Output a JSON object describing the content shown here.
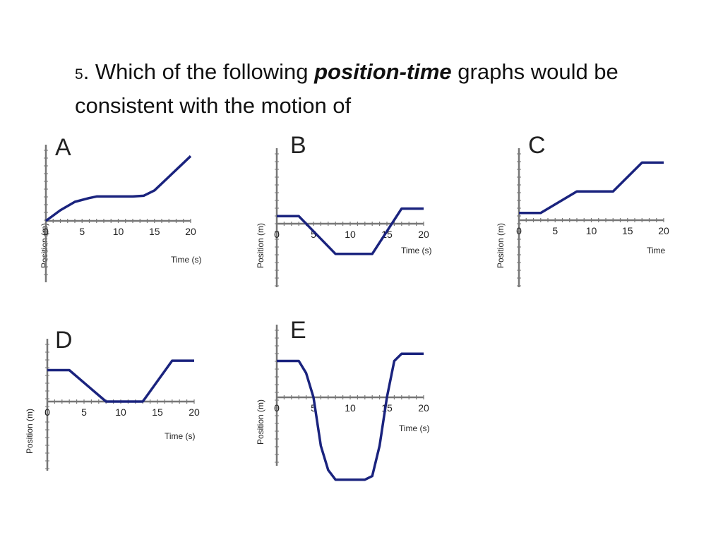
{
  "question": {
    "number": "5",
    "text_before": ". Which of the following ",
    "emphasis": "position-time",
    "text_after": " graphs would be consistent with the motion of"
  },
  "line_color": "#1a237e",
  "axis_color": "#777777",
  "chart_data": [
    {
      "type": "line",
      "title": "A",
      "xlabel": "Time (s)",
      "ylabel": "Position (m)",
      "x_ticks": [
        "0",
        "5",
        "10",
        "15",
        "20"
      ],
      "xlim": [
        0,
        20
      ],
      "ylim": [
        -5,
        10
      ],
      "grid": false,
      "series": [
        {
          "x": [
            0,
            2,
            4,
            6,
            7,
            8,
            10,
            12,
            13.5,
            15,
            17,
            20
          ],
          "y": [
            0,
            1.4,
            2.5,
            3.0,
            3.2,
            3.2,
            3.2,
            3.2,
            3.3,
            4.0,
            5.8,
            8.5
          ]
        }
      ]
    },
    {
      "type": "line",
      "title": "B",
      "xlabel": "Time (s)",
      "ylabel": "Position (m)",
      "x_ticks": [
        "0",
        "5",
        "10",
        "15",
        "20"
      ],
      "xlim": [
        0,
        20
      ],
      "ylim": [
        -10,
        10
      ],
      "grid": false,
      "series": [
        {
          "x": [
            0,
            3,
            8,
            13,
            17,
            20
          ],
          "y": [
            1,
            1,
            -4,
            -4,
            2,
            2
          ]
        }
      ]
    },
    {
      "type": "line",
      "title": "C",
      "xlabel": "Time",
      "ylabel": "Position (m)",
      "x_ticks": [
        "0",
        "5",
        "10",
        "15",
        "20"
      ],
      "xlim": [
        0,
        20
      ],
      "ylim": [
        -10,
        10
      ],
      "grid": false,
      "series": [
        {
          "x": [
            0,
            3,
            8,
            13,
            17,
            20
          ],
          "y": [
            1,
            1,
            4,
            4,
            8,
            8
          ]
        }
      ]
    },
    {
      "type": "line",
      "title": "D",
      "xlabel": "Time (s)",
      "ylabel": "Position (m)",
      "x_ticks": [
        "0",
        "5",
        "10",
        "15",
        "20"
      ],
      "xlim": [
        0,
        20
      ],
      "ylim": [
        -10,
        10
      ],
      "grid": false,
      "series": [
        {
          "x": [
            0,
            3,
            8,
            13,
            17,
            20
          ],
          "y": [
            5,
            5,
            0,
            0,
            6.5,
            6.5
          ]
        }
      ]
    },
    {
      "type": "line",
      "title": "E",
      "xlabel": "Time (s)",
      "ylabel": "Position (m)",
      "x_ticks": [
        "0",
        "5",
        "10",
        "15",
        "20"
      ],
      "xlim": [
        0,
        20
      ],
      "ylim": [
        -10,
        6
      ],
      "grid": false,
      "series": [
        {
          "x": [
            0,
            3,
            4,
            5,
            6,
            7,
            8,
            10,
            12,
            13,
            14,
            15,
            16,
            17,
            20
          ],
          "y": [
            3,
            3,
            2,
            0,
            -4,
            -6,
            -6.8,
            -6.8,
            -6.8,
            -6.5,
            -4,
            0,
            3,
            3.6,
            3.6
          ]
        }
      ]
    }
  ]
}
